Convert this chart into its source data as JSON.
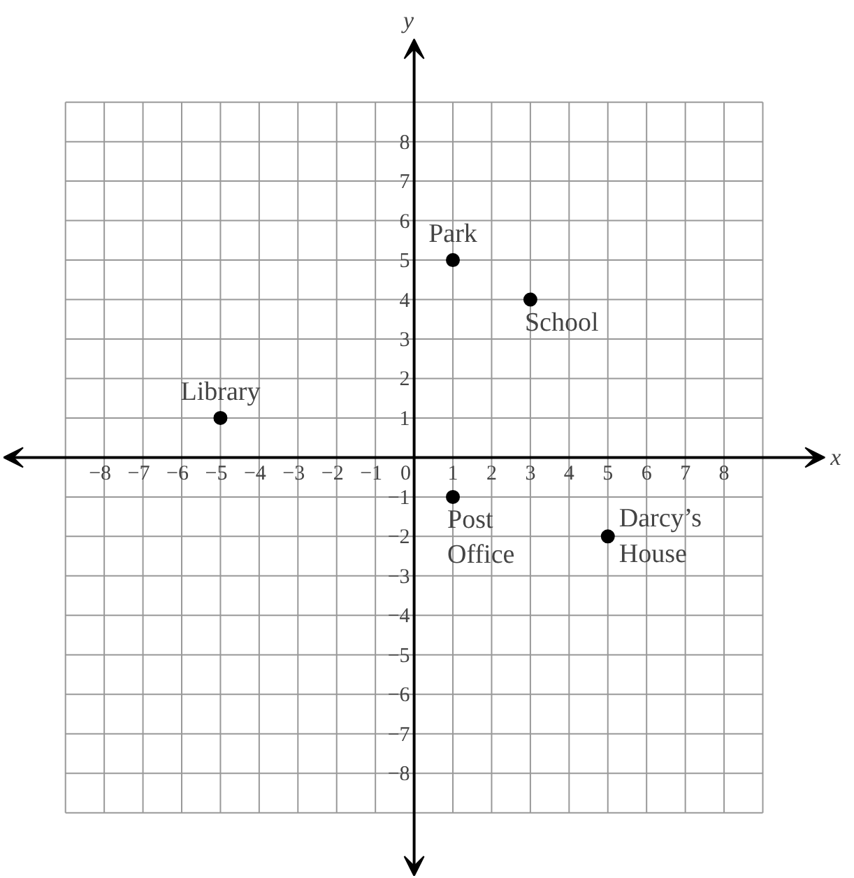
{
  "chart_data": {
    "type": "scatter",
    "xlabel": "x",
    "ylabel": "y",
    "x": [
      1,
      3,
      -5,
      1,
      5
    ],
    "values": [
      5,
      4,
      1,
      -1,
      -2
    ],
    "color": "#000000",
    "marker": "circle",
    "grid": true,
    "xlim": [
      -10.6,
      10.6
    ],
    "ylim": [
      -10.6,
      10.6
    ],
    "xticks": [
      {
        "value": -9,
        "label": null
      },
      -8,
      -7,
      -6,
      -5,
      -4,
      -3,
      -2,
      -1,
      0,
      1,
      2,
      3,
      4,
      5,
      6,
      7,
      8,
      {
        "value": 9,
        "label": null
      }
    ],
    "yticks": [
      {
        "value": -9,
        "label": null
      },
      -8,
      -7,
      -6,
      -5,
      -4,
      -3,
      -2,
      -1,
      {
        "value": 0,
        "label": null
      },
      1,
      2,
      3,
      4,
      5,
      6,
      7,
      8,
      {
        "value": 9,
        "label": null
      }
    ],
    "annotations": [
      {
        "text": "Park",
        "x": 1,
        "y": 5
      },
      {
        "text": "School",
        "x": 3,
        "y": 4
      },
      {
        "text": "Library",
        "x": -5,
        "y": 1
      },
      {
        "text": "Post\nOffice",
        "x": 1,
        "y": -1
      },
      {
        "text": "Darcy’s\nHouse",
        "x": 5,
        "y": -2
      }
    ]
  }
}
